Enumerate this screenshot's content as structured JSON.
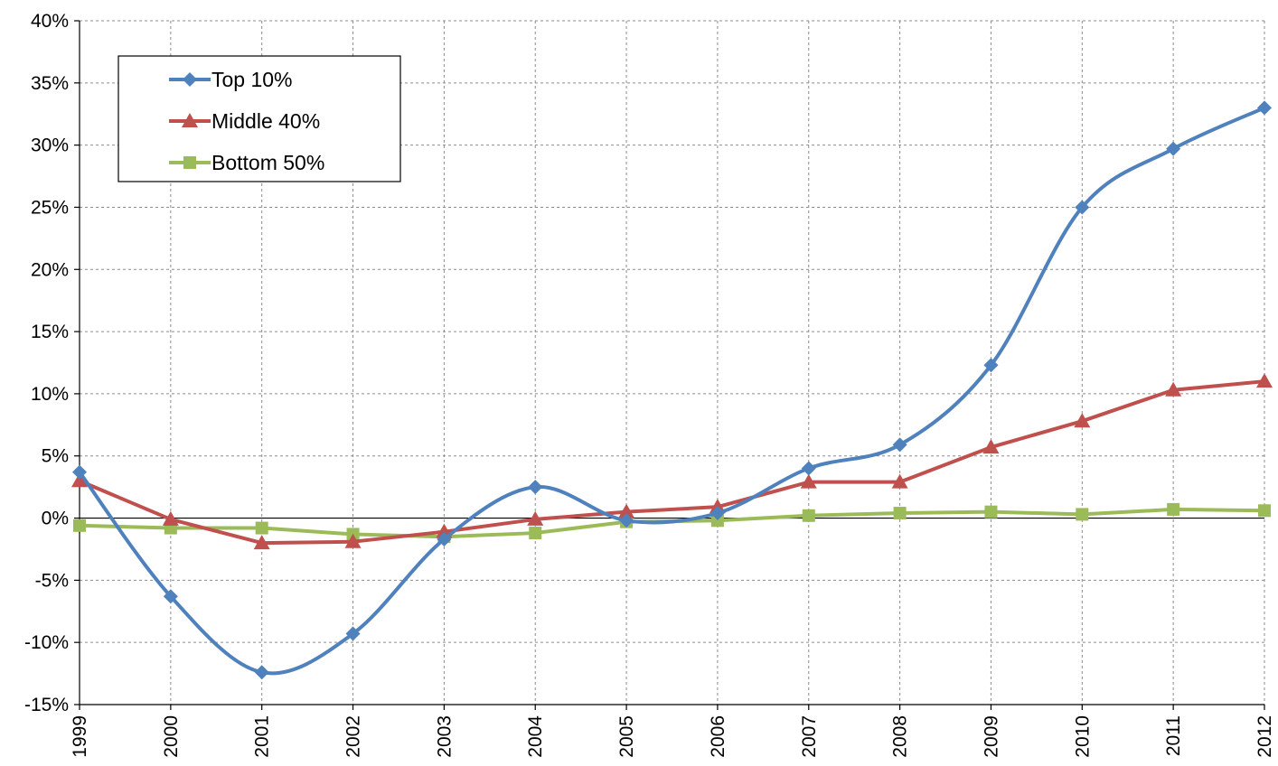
{
  "chart_data": {
    "type": "line",
    "title": "",
    "xlabel": "",
    "ylabel": "",
    "x": [
      "1999",
      "2000",
      "2001",
      "2002",
      "2003",
      "2004",
      "2005",
      "2006",
      "2007",
      "2008",
      "2009",
      "2010",
      "2011",
      "2012"
    ],
    "y_ticks": [
      "40%",
      "35%",
      "30%",
      "25%",
      "20%",
      "15%",
      "10%",
      "5%",
      "0%",
      "-5%",
      "-10%",
      "-15%"
    ],
    "ylim": [
      -15,
      40
    ],
    "y_unit": "%",
    "grid": true,
    "legend_position": "top-left",
    "series": [
      {
        "name": "Top 10%",
        "color": "#4f81bd",
        "marker": "diamond",
        "values": [
          3.7,
          -6.3,
          -12.4,
          -9.3,
          -1.7,
          2.5,
          -0.2,
          0.4,
          4.0,
          5.9,
          12.3,
          25.0,
          29.7,
          33.0
        ]
      },
      {
        "name": "Middle 40%",
        "color": "#c0504d",
        "marker": "triangle",
        "values": [
          3.0,
          -0.1,
          -2.0,
          -1.9,
          -1.1,
          -0.1,
          0.5,
          0.9,
          2.9,
          2.9,
          5.7,
          7.8,
          10.3,
          11.0
        ]
      },
      {
        "name": "Bottom 50%",
        "color": "#9bbb59",
        "marker": "square",
        "values": [
          -0.6,
          -0.8,
          -0.8,
          -1.3,
          -1.5,
          -1.2,
          -0.3,
          -0.2,
          0.2,
          0.4,
          0.5,
          0.3,
          0.7,
          0.6
        ]
      }
    ]
  }
}
